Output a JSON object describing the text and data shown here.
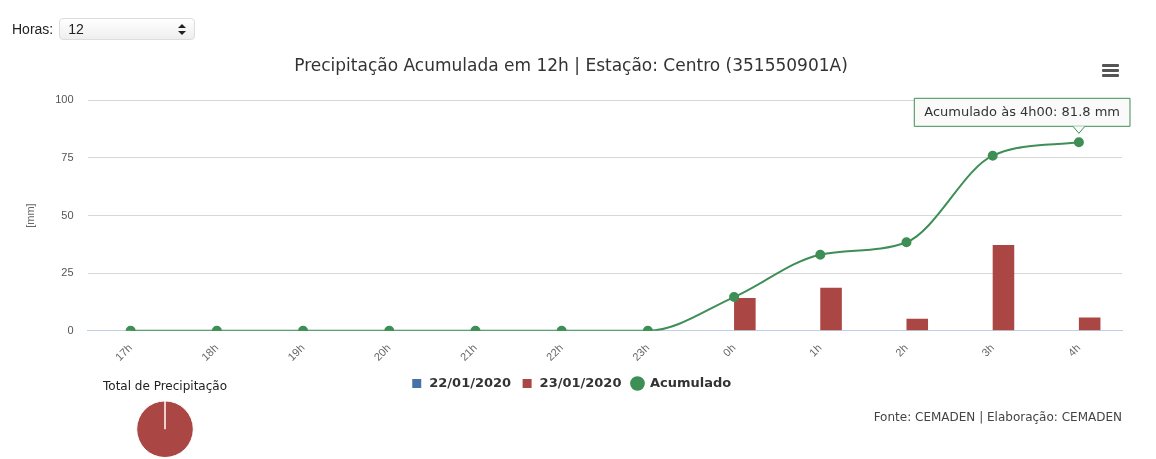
{
  "chart_data": [
    {
      "type": "bar",
      "title": "Precipitação Acumulada em 12h | Estação: Centro (351550901A)",
      "ylabel": "[mm]",
      "categories": [
        "17h",
        "18h",
        "19h",
        "20h",
        "21h",
        "22h",
        "23h",
        "0h",
        "1h",
        "2h",
        "3h",
        "4h"
      ],
      "series": [
        {
          "name": "22/01/2020",
          "color": "#4572a7",
          "values": [
            0,
            0,
            0,
            0,
            0,
            0,
            0,
            null,
            null,
            null,
            null,
            null
          ]
        },
        {
          "name": "23/01/2020",
          "color": "#aa4643",
          "values": [
            null,
            null,
            null,
            null,
            null,
            null,
            null,
            14.2,
            18.6,
            5.2,
            37.2,
            5.7
          ]
        },
        {
          "name": "Acumulado",
          "type": "line",
          "color": "#3d8f55",
          "values": [
            0,
            0,
            0,
            0,
            0,
            0,
            0,
            14.6,
            33.0,
            38.4,
            76.0,
            81.8
          ]
        }
      ],
      "ylim": [
        0,
        100
      ],
      "yticks": [
        0,
        25,
        50,
        75,
        100
      ],
      "grid": "y",
      "legend": "bottom",
      "marker": "circle",
      "annotations": [
        "Horas:",
        "12",
        {
          "text": "Acumulado às 4h00: 81.8 mm",
          "x": "4h",
          "y": 81.8
        },
        "Fonte: CEMADEN | Elaboração: CEMADEN"
      ]
    },
    {
      "type": "pie",
      "title": "Total de Precipitação",
      "categories": [
        null,
        null
      ],
      "values": [
        0,
        100
      ],
      "colors": [
        "#4572a7",
        "#aa4643"
      ]
    }
  ]
}
